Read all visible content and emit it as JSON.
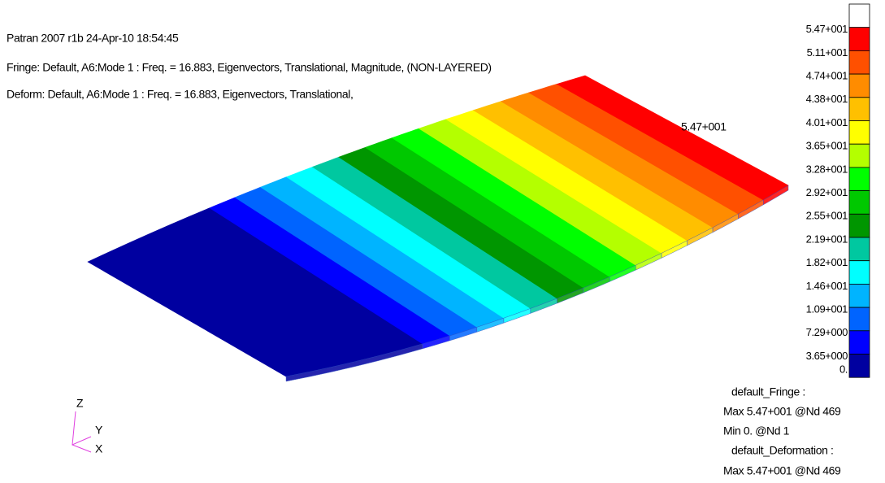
{
  "header": {
    "lines": [
      "Patran 2007 r1b 24-Apr-10 18:54:45",
      "Fringe: Default, A6:Mode 1 : Freq. = 16.883, Eigenvectors, Translational, Magnitude, (NON-LAYERED)",
      "Deform: Default, A6:Mode 1 : Freq. = 16.883, Eigenvectors, Translational,"
    ]
  },
  "legend": {
    "labels": [
      "5.47+001",
      "5.11+001",
      "4.74+001",
      "4.38+001",
      "4.01+001",
      "3.65+001",
      "3.28+001",
      "2.92+001",
      "2.55+001",
      "2.19+001",
      "1.82+001",
      "1.46+001",
      "1.09+001",
      "7.29+000",
      "3.65+000",
      "0."
    ],
    "colors": [
      "#ffffff",
      "#ff0000",
      "#ff5000",
      "#ff8c00",
      "#ffc000",
      "#ffff00",
      "#b4ff00",
      "#00ff00",
      "#00c800",
      "#009600",
      "#00c8a0",
      "#00ffff",
      "#00b4ff",
      "#0064ff",
      "#0000ff",
      "#0000a0"
    ]
  },
  "plate_label": "5.47+001",
  "info": [
    "default_Fringe :",
    "Max 5.47+001 @Nd 469",
    "Min  0. @Nd 1",
    "default_Deformation :",
    "Max 5.47+001 @Nd 469"
  ],
  "triad": {
    "z": "Z",
    "y": "Y",
    "x": "X"
  }
}
